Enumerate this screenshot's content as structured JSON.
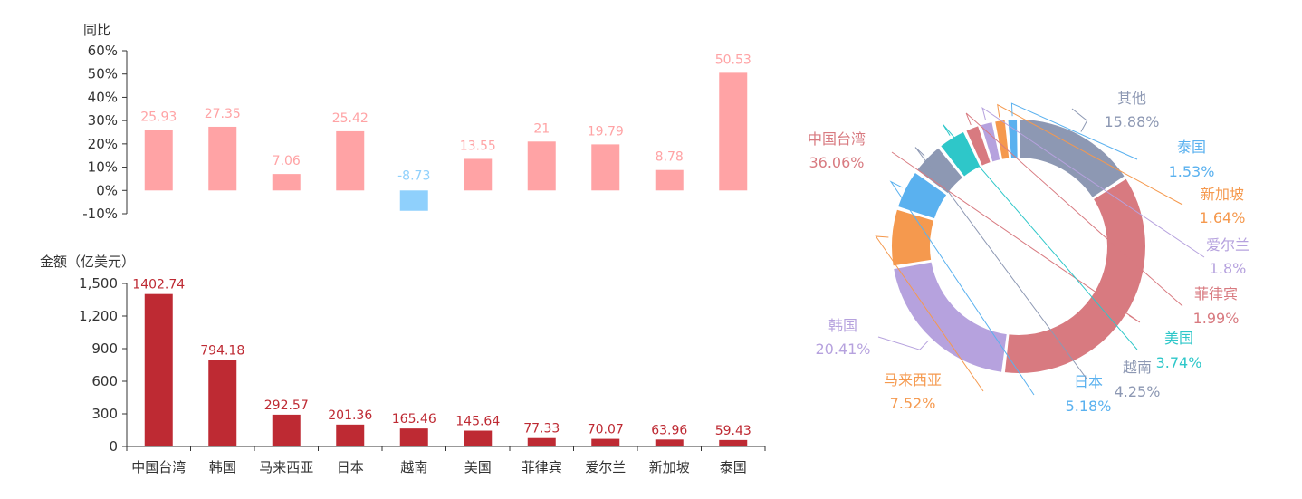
{
  "chart_data": [
    {
      "type": "bar",
      "ylabel": "同比",
      "ylim": [
        -10,
        60
      ],
      "yticks": [
        "60%",
        "50%",
        "40%",
        "30%",
        "20%",
        "10%",
        "0%",
        "-10%"
      ],
      "categories": [
        "中国台湾",
        "韩国",
        "马来西亚",
        "日本",
        "越南",
        "美国",
        "菲律宾",
        "爱尔兰",
        "新加坡",
        "泰国"
      ],
      "values": [
        25.93,
        27.35,
        7.06,
        25.42,
        -8.73,
        13.55,
        21,
        19.79,
        8.78,
        50.53
      ],
      "value_labels": [
        "25.93",
        "27.35",
        "7.06",
        "25.42",
        "-8.73",
        "13.55",
        "21",
        "19.79",
        "8.78",
        "50.53"
      ],
      "colors": {
        "positive": "#ffa3a5",
        "negative": "#8fd0fc"
      }
    },
    {
      "type": "bar",
      "ylabel": "金额（亿美元）",
      "ylim": [
        0,
        1500
      ],
      "yticks": [
        "1,500",
        "1,200",
        "900",
        "600",
        "300",
        "0"
      ],
      "categories": [
        "中国台湾",
        "韩国",
        "马来西亚",
        "日本",
        "越南",
        "美国",
        "菲律宾",
        "爱尔兰",
        "新加坡",
        "泰国"
      ],
      "values": [
        1402.74,
        794.18,
        292.57,
        201.36,
        165.46,
        145.64,
        77.33,
        70.07,
        63.96,
        59.43
      ],
      "value_labels": [
        "1402.74",
        "794.18",
        "292.57",
        "201.36",
        "165.46",
        "145.64",
        "77.33",
        "70.07",
        "63.96",
        "59.43"
      ],
      "colors": {
        "bar": "#be2a33"
      }
    },
    {
      "type": "pie",
      "donut": true,
      "slices": [
        {
          "name": "中国台湾",
          "pct_label": "36.06%",
          "value": 36.06,
          "color": "#d87a80"
        },
        {
          "name": "韩国",
          "pct_label": "20.41%",
          "value": 20.41,
          "color": "#b6a2de"
        },
        {
          "name": "马来西亚",
          "pct_label": "7.52%",
          "value": 7.52,
          "color": "#f5994e"
        },
        {
          "name": "日本",
          "pct_label": "5.18%",
          "value": 5.18,
          "color": "#5ab1ef"
        },
        {
          "name": "越南",
          "pct_label": "4.25%",
          "value": 4.25,
          "color": "#8d98b3"
        },
        {
          "name": "美国",
          "pct_label": "3.74%",
          "value": 3.74,
          "color": "#2ec7c9"
        },
        {
          "name": "菲律宾",
          "pct_label": "1.99%",
          "value": 1.99,
          "color": "#d87a80"
        },
        {
          "name": "爱尔兰",
          "pct_label": "1.8%",
          "value": 1.8,
          "color": "#b6a2de"
        },
        {
          "name": "新加坡",
          "pct_label": "1.64%",
          "value": 1.64,
          "color": "#f5994e"
        },
        {
          "name": "泰国",
          "pct_label": "1.53%",
          "value": 1.53,
          "color": "#5ab1ef"
        },
        {
          "name": "其他",
          "pct_label": "15.88%",
          "value": 15.88,
          "color": "#8d98b3"
        }
      ]
    }
  ]
}
